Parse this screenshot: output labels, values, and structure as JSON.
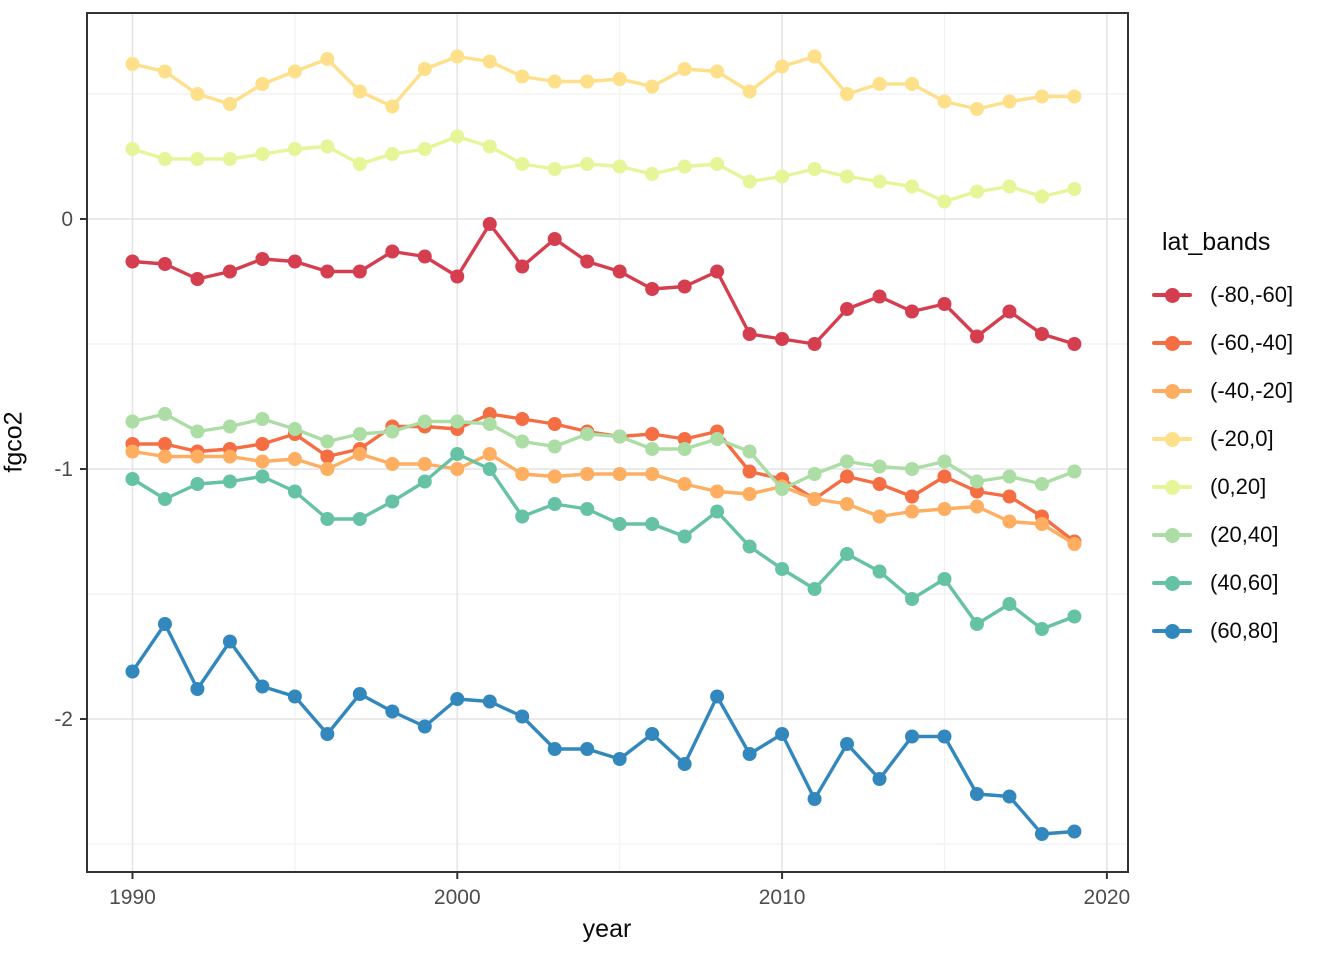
{
  "figure": {
    "background": "#ffffff"
  },
  "chart_data": {
    "type": "line",
    "title": "",
    "xlabel": "year",
    "ylabel": "fgco2",
    "legend_title": "lat_bands",
    "legend_position": "right",
    "grid": true,
    "x": [
      1990,
      1991,
      1992,
      1993,
      1994,
      1995,
      1996,
      1997,
      1998,
      1999,
      2000,
      2001,
      2002,
      2003,
      2004,
      2005,
      2006,
      2007,
      2008,
      2009,
      2010,
      2011,
      2012,
      2013,
      2014,
      2015,
      2016,
      2017,
      2018,
      2019
    ],
    "x_tick_labels": [
      "1990",
      "2000",
      "2010",
      "2020"
    ],
    "x_ticks": [
      1990,
      2000,
      2010,
      2020
    ],
    "x_minor_ticks": [
      1995,
      2005,
      2015
    ],
    "y_tick_labels": [
      "0",
      "-1",
      "-2"
    ],
    "y_ticks": [
      0,
      -1,
      -2
    ],
    "y_minor_ticks": [
      0.5,
      -0.5,
      -1.5,
      -2.5
    ],
    "xlim": [
      1988.6,
      2020.65
    ],
    "ylim": [
      -2.612,
      0.824
    ],
    "series": [
      {
        "name": "(-80,-60]",
        "color": "#d53e4f",
        "values": [
          -0.17,
          -0.18,
          -0.24,
          -0.21,
          -0.16,
          -0.17,
          -0.21,
          -0.21,
          -0.13,
          -0.15,
          -0.23,
          -0.02,
          -0.19,
          -0.08,
          -0.17,
          -0.21,
          -0.28,
          -0.27,
          -0.21,
          -0.46,
          -0.48,
          -0.5,
          -0.36,
          -0.31,
          -0.37,
          -0.34,
          -0.47,
          -0.37,
          -0.46,
          -0.5
        ]
      },
      {
        "name": "(-60,-40]",
        "color": "#f46d43",
        "values": [
          -0.9,
          -0.9,
          -0.93,
          -0.92,
          -0.9,
          -0.86,
          -0.95,
          -0.92,
          -0.83,
          -0.83,
          -0.84,
          -0.78,
          -0.8,
          -0.82,
          -0.85,
          -0.87,
          -0.86,
          -0.88,
          -0.85,
          -1.01,
          -1.04,
          -1.12,
          -1.03,
          -1.06,
          -1.11,
          -1.03,
          -1.09,
          -1.11,
          -1.19,
          -1.29
        ]
      },
      {
        "name": "(-40,-20]",
        "color": "#fdae61",
        "values": [
          -0.93,
          -0.95,
          -0.95,
          -0.95,
          -0.97,
          -0.96,
          -1.0,
          -0.94,
          -0.98,
          -0.98,
          -1.0,
          -0.94,
          -1.02,
          -1.03,
          -1.02,
          -1.02,
          -1.02,
          -1.06,
          -1.09,
          -1.1,
          -1.07,
          -1.12,
          -1.14,
          -1.19,
          -1.17,
          -1.16,
          -1.15,
          -1.21,
          -1.22,
          -1.3
        ]
      },
      {
        "name": "(-20,0]",
        "color": "#fee08b",
        "values": [
          0.62,
          0.59,
          0.5,
          0.46,
          0.54,
          0.59,
          0.64,
          0.51,
          0.45,
          0.6,
          0.65,
          0.63,
          0.57,
          0.55,
          0.55,
          0.56,
          0.53,
          0.6,
          0.59,
          0.51,
          0.61,
          0.65,
          0.5,
          0.54,
          0.54,
          0.47,
          0.44,
          0.47,
          0.49,
          0.49
        ]
      },
      {
        "name": "(0,20]",
        "color": "#e6f598",
        "values": [
          0.28,
          0.24,
          0.24,
          0.24,
          0.26,
          0.28,
          0.29,
          0.22,
          0.26,
          0.28,
          0.33,
          0.29,
          0.22,
          0.2,
          0.22,
          0.21,
          0.18,
          0.21,
          0.22,
          0.15,
          0.17,
          0.2,
          0.17,
          0.15,
          0.13,
          0.07,
          0.11,
          0.13,
          0.09,
          0.12
        ]
      },
      {
        "name": "(20,40]",
        "color": "#abdda4",
        "values": [
          -0.81,
          -0.78,
          -0.85,
          -0.83,
          -0.8,
          -0.84,
          -0.89,
          -0.86,
          -0.85,
          -0.81,
          -0.81,
          -0.82,
          -0.89,
          -0.91,
          -0.86,
          -0.87,
          -0.92,
          -0.92,
          -0.88,
          -0.93,
          -1.08,
          -1.02,
          -0.97,
          -0.99,
          -1.0,
          -0.97,
          -1.05,
          -1.03,
          -1.06,
          -1.01
        ]
      },
      {
        "name": "(40,60]",
        "color": "#66c2a5",
        "values": [
          -1.04,
          -1.12,
          -1.06,
          -1.05,
          -1.03,
          -1.09,
          -1.2,
          -1.2,
          -1.13,
          -1.05,
          -0.94,
          -1.0,
          -1.19,
          -1.14,
          -1.16,
          -1.22,
          -1.22,
          -1.27,
          -1.17,
          -1.31,
          -1.4,
          -1.48,
          -1.34,
          -1.41,
          -1.52,
          -1.44,
          -1.62,
          -1.54,
          -1.64,
          -1.59
        ]
      },
      {
        "name": "(60,80]",
        "color": "#3288bd",
        "values": [
          -1.81,
          -1.62,
          -1.88,
          -1.69,
          -1.87,
          -1.91,
          -2.06,
          -1.9,
          -1.97,
          -2.03,
          -1.92,
          -1.93,
          -1.99,
          -2.12,
          -2.12,
          -2.16,
          -2.06,
          -2.18,
          -1.91,
          -2.14,
          -2.06,
          -2.32,
          -2.1,
          -2.24,
          -2.07,
          -2.07,
          -2.3,
          -2.31,
          -2.46,
          -2.45
        ]
      }
    ],
    "style": {
      "panel_border_color": "#333333",
      "grid_major_color": "#e4e4e4",
      "grid_minor_color": "#f1f1f1",
      "tick_label_color": "#4d4d4d",
      "point_radius": 7,
      "line_width": 3.4
    }
  }
}
